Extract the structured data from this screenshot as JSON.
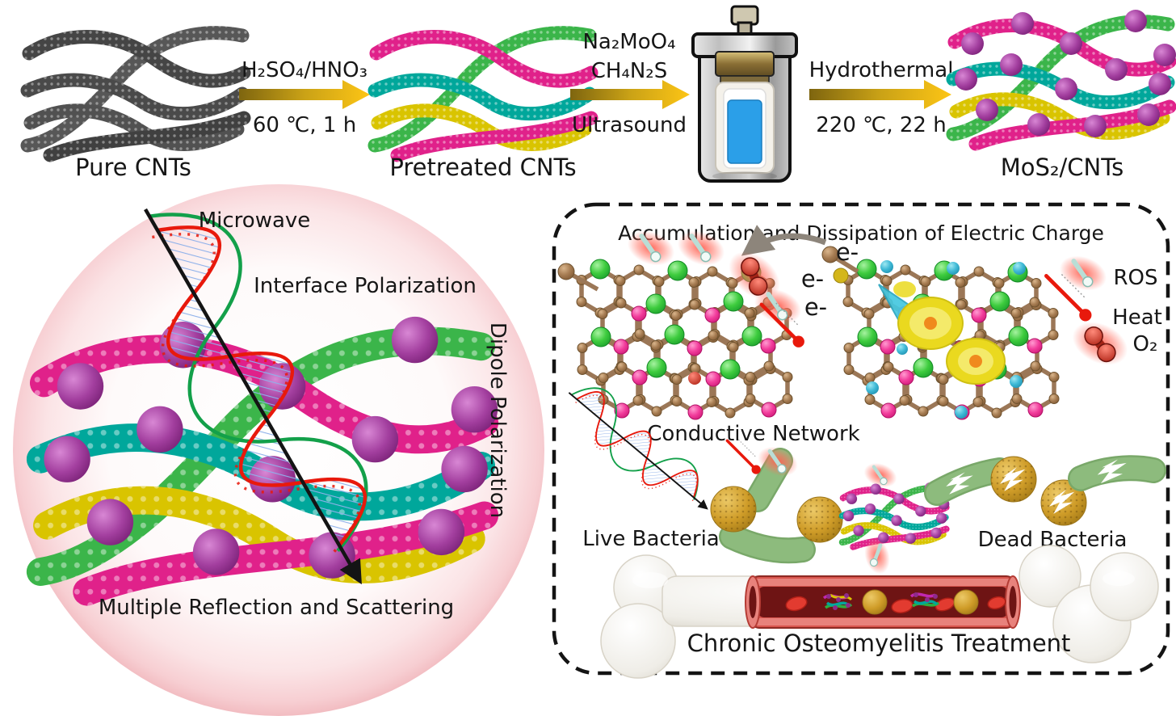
{
  "synthesis": {
    "pure_label": "Pure CNTs",
    "pretreated_label": "Pretreated CNTs",
    "product_label": "MoS₂/CNTs",
    "step1_reagent": "H₂SO₄/HNO₃",
    "step1_condition": "60 ℃, 1 h",
    "step2_reagent1": "Na₂MoO₄",
    "step2_reagent2": "CH₄N₂S",
    "step2_condition": "Ultrasound",
    "step3_process": "Hydrothermal",
    "step3_condition": "220 ℃, 22 h"
  },
  "microwave_panel": {
    "microwave": "Microwave",
    "interface_polarization": "Interface Polarization",
    "dipole_polarization": "Dipole Polarization",
    "multiple_reflection": "Multiple Reflection and Scattering"
  },
  "charge_panel": {
    "title": "Accumulation and Dissipation of Electric Charge",
    "electrons": [
      "e-",
      "e-",
      "e-"
    ],
    "legend_ros": "ROS",
    "legend_heat": "Heat",
    "legend_o2": "O₂",
    "conductive_network": "Conductive Network",
    "live_bacteria": "Live Bacteria",
    "dead_bacteria": "Dead Bacteria",
    "treatment": "Chronic Osteomyelitis Treatment"
  },
  "colors": {
    "cnt_magenta": "#e0218a",
    "cnt_green": "#3bb54a",
    "cnt_teal": "#00a79b",
    "cnt_yellow": "#d9c400",
    "cnt_gray": "#4f4f4f",
    "mos2_purple": "#9c3398",
    "arrow_gold": "#fdc515",
    "glow_red": "#ff5f50",
    "bacteria_green": "#8dbb7d",
    "bacteria_gold": "#cf9c28",
    "bone_ivory": "#f1efe9",
    "vessel_red": "#d8554e",
    "sphere_pink_rim": "#f2bcc1"
  },
  "icons": {
    "autoclave": "hydrothermal-autoclave",
    "microwave_wave": "em-wave-arrow",
    "ros": "ros-comet",
    "heat": "thermometer",
    "o2": "oxygen-molecule",
    "electron_transfer": "curved-arrow",
    "dead_mark": "lightning-bolt"
  }
}
